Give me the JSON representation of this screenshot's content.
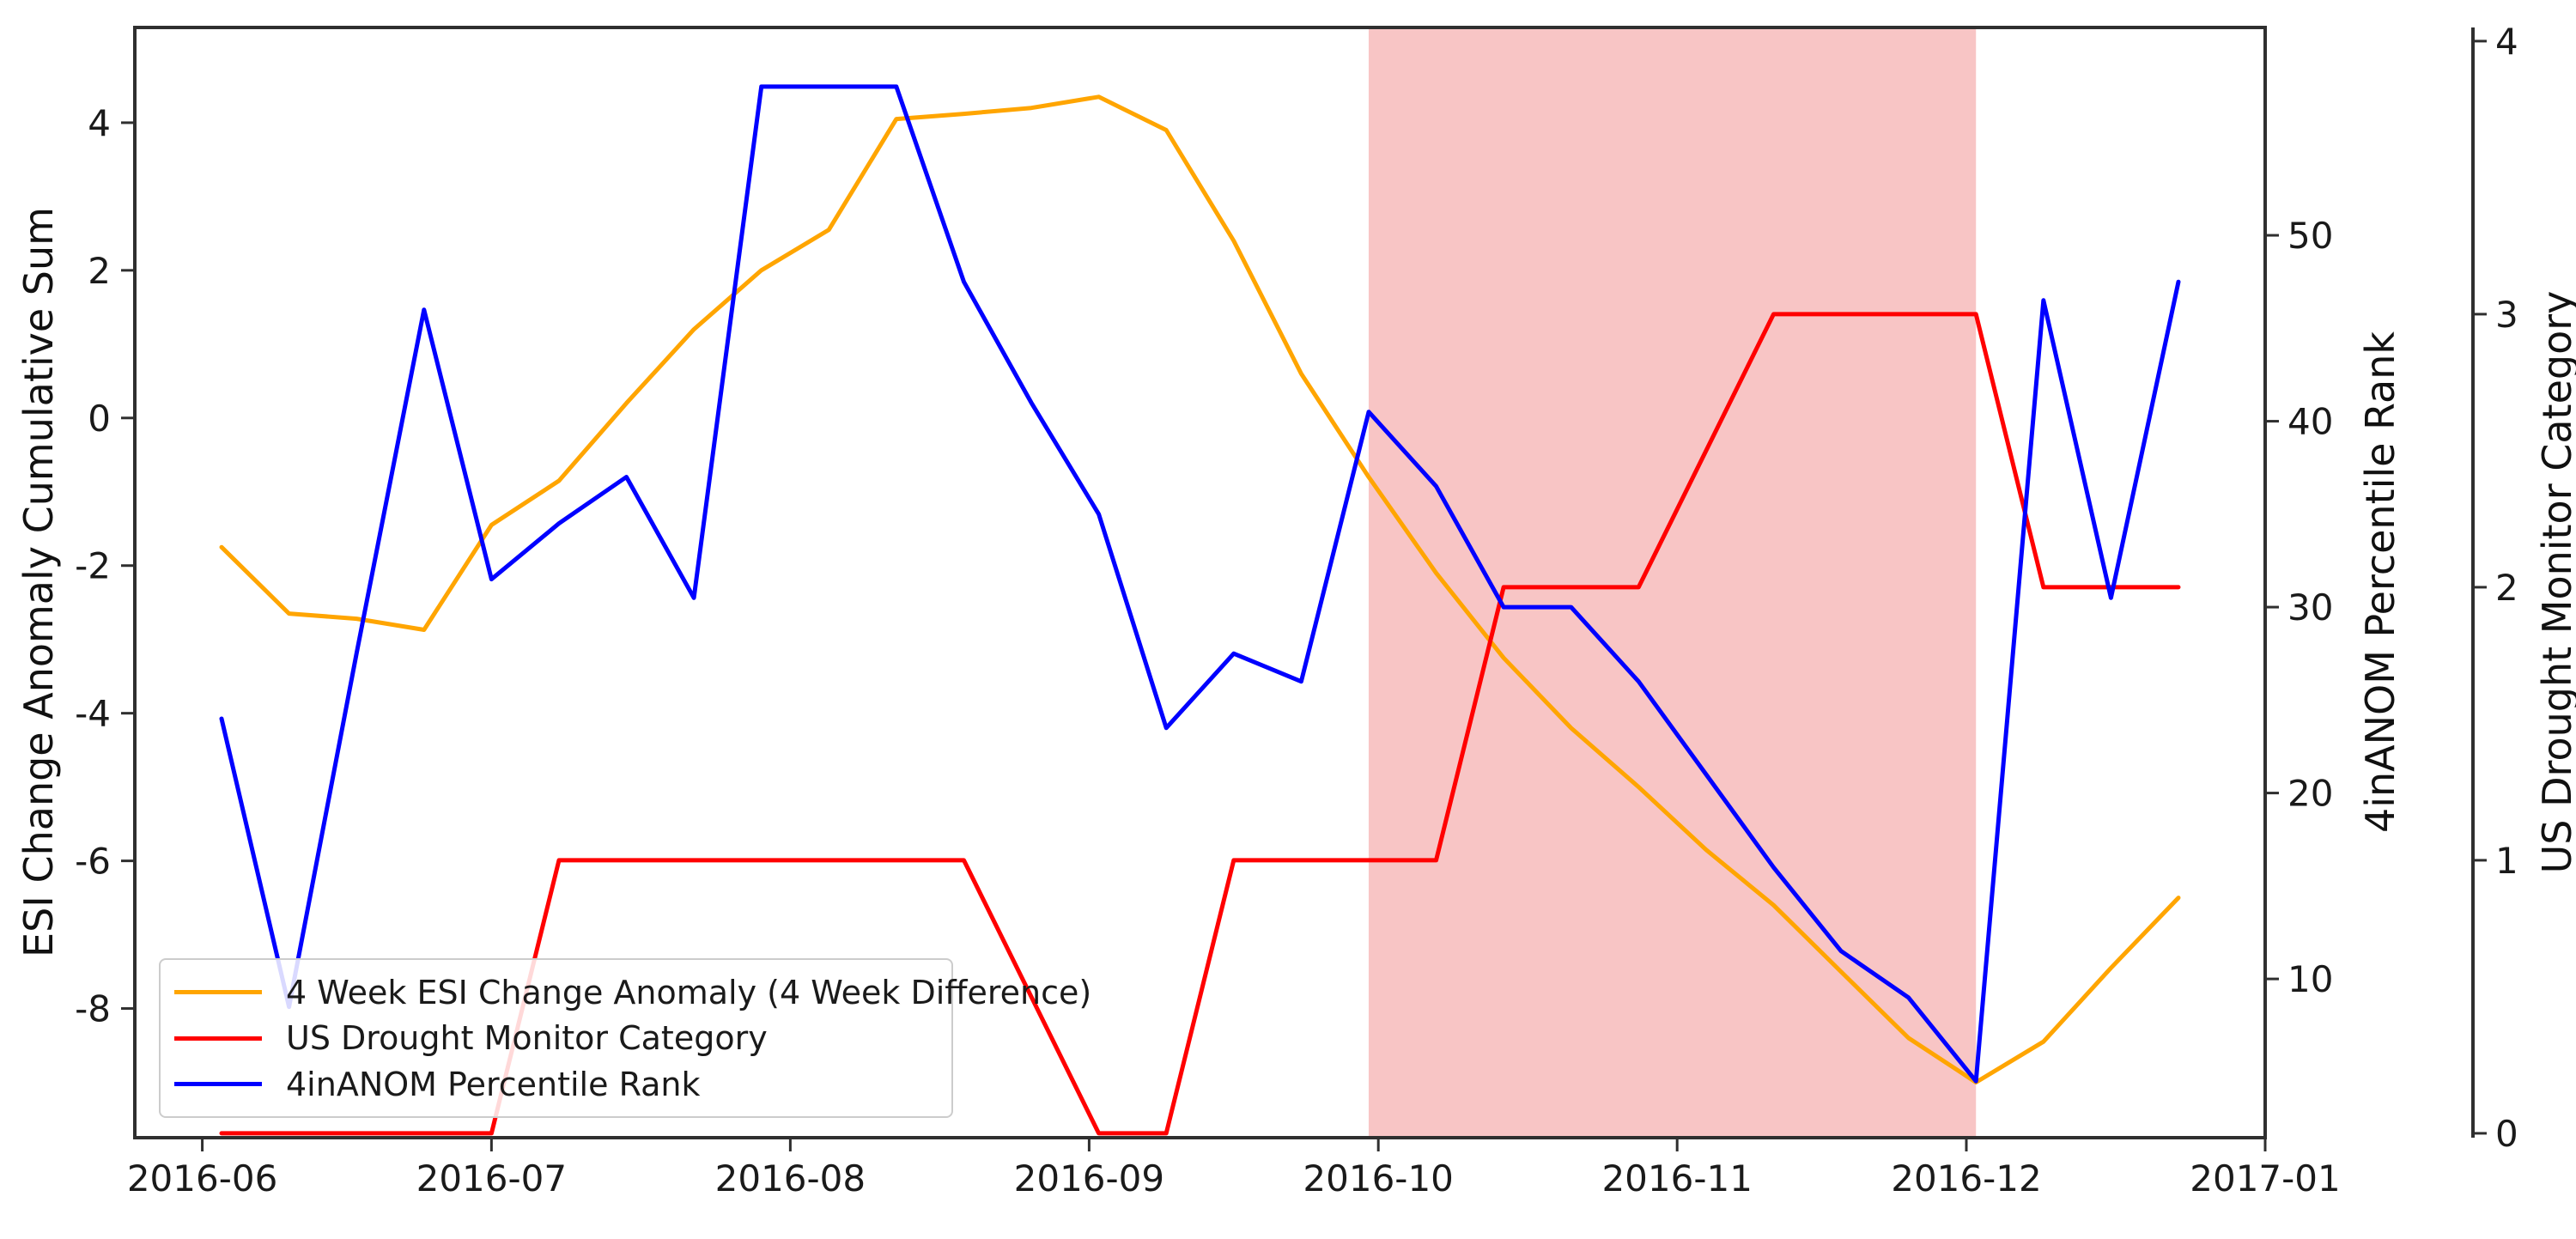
{
  "chart_data": {
    "type": "line",
    "title": "",
    "grid": false,
    "figure_bg": "#ffffff",
    "x_range": {
      "start": "2016-05-25",
      "end": "2017-01-01"
    },
    "x_ticks": [
      {
        "label": "2016-06",
        "date": "2016-06-01"
      },
      {
        "label": "2016-07",
        "date": "2016-07-01"
      },
      {
        "label": "2016-08",
        "date": "2016-08-01"
      },
      {
        "label": "2016-09",
        "date": "2016-09-01"
      },
      {
        "label": "2016-10",
        "date": "2016-10-01"
      },
      {
        "label": "2016-11",
        "date": "2016-11-01"
      },
      {
        "label": "2016-12",
        "date": "2016-12-01"
      },
      {
        "label": "2017-01",
        "date": "2017-01-01"
      }
    ],
    "left_axis": {
      "label": "ESI Change Anomaly Cumulative Sum",
      "ticks": [
        4,
        2,
        0,
        -2,
        -4,
        -6,
        -8
      ],
      "min": -9.75,
      "max": 5.29
    },
    "right_axis_percentile": {
      "label": "4inANOM Percentile Rank",
      "ticks": [
        50,
        40,
        30,
        20,
        10
      ],
      "min": 1.46,
      "max": 61.18
    },
    "right_axis_category": {
      "label": "US Drought Monitor Category",
      "ticks": [
        4,
        3,
        2,
        1,
        0
      ],
      "min": -0.016,
      "max": 4.05
    },
    "shaded_region": {
      "start": "2016-09-30",
      "end": "2016-12-02",
      "color": "#f8c5c5"
    },
    "legend": {
      "position": "lower left",
      "entries": [
        "4 Week ESI Change Anomaly (4 Week Difference)",
        "US Drought Monitor Category",
        "4inANOM Percentile Rank"
      ]
    },
    "series": [
      {
        "name": "4 Week ESI Change Anomaly (4 Week Difference)",
        "color": "#FFA500",
        "axis": "left",
        "points": [
          [
            "2016-06-03",
            -1.75
          ],
          [
            "2016-06-10",
            -2.65
          ],
          [
            "2016-06-17",
            -2.72
          ],
          [
            "2016-06-24",
            -2.87
          ],
          [
            "2016-07-01",
            -1.45
          ],
          [
            "2016-07-08",
            -0.85
          ],
          [
            "2016-07-15",
            0.2
          ],
          [
            "2016-07-22",
            1.2
          ],
          [
            "2016-07-29",
            2.0
          ],
          [
            "2016-08-05",
            2.55
          ],
          [
            "2016-08-12",
            4.05
          ],
          [
            "2016-08-19",
            4.12
          ],
          [
            "2016-08-26",
            4.2
          ],
          [
            "2016-09-02",
            4.35
          ],
          [
            "2016-09-09",
            3.9
          ],
          [
            "2016-09-16",
            2.4
          ],
          [
            "2016-09-23",
            0.6
          ],
          [
            "2016-09-30",
            -0.8
          ],
          [
            "2016-10-07",
            -2.1
          ],
          [
            "2016-10-14",
            -3.25
          ],
          [
            "2016-10-21",
            -4.2
          ],
          [
            "2016-10-28",
            -5.0
          ],
          [
            "2016-11-04",
            -5.85
          ],
          [
            "2016-11-11",
            -6.6
          ],
          [
            "2016-11-18",
            -7.5
          ],
          [
            "2016-11-25",
            -8.4
          ],
          [
            "2016-12-02",
            -9.0
          ],
          [
            "2016-12-09",
            -8.45
          ],
          [
            "2016-12-16",
            -7.45
          ],
          [
            "2016-12-23",
            -6.5
          ]
        ]
      },
      {
        "name": "US Drought Monitor Category",
        "color": "#FF0000",
        "axis": "category",
        "points": [
          [
            "2016-06-03",
            0
          ],
          [
            "2016-07-01",
            0
          ],
          [
            "2016-07-08",
            1
          ],
          [
            "2016-08-19",
            1
          ],
          [
            "2016-09-02",
            0
          ],
          [
            "2016-09-09",
            0
          ],
          [
            "2016-09-16",
            1
          ],
          [
            "2016-10-07",
            1
          ],
          [
            "2016-10-14",
            2
          ],
          [
            "2016-10-28",
            2
          ],
          [
            "2016-11-11",
            3
          ],
          [
            "2016-12-02",
            3
          ],
          [
            "2016-12-09",
            2
          ],
          [
            "2016-12-23",
            2
          ]
        ]
      },
      {
        "name": "4inANOM Percentile Rank",
        "color": "#0000FF",
        "axis": "percentile",
        "points": [
          [
            "2016-06-03",
            24
          ],
          [
            "2016-06-10",
            8.5
          ],
          [
            "2016-06-17",
            27.5
          ],
          [
            "2016-06-24",
            46
          ],
          [
            "2016-07-01",
            31.5
          ],
          [
            "2016-07-08",
            34.5
          ],
          [
            "2016-07-15",
            37
          ],
          [
            "2016-07-22",
            30.5
          ],
          [
            "2016-07-29",
            58
          ],
          [
            "2016-08-05",
            58
          ],
          [
            "2016-08-12",
            58
          ],
          [
            "2016-08-19",
            47.5
          ],
          [
            "2016-08-26",
            41
          ],
          [
            "2016-09-02",
            35
          ],
          [
            "2016-09-09",
            23.5
          ],
          [
            "2016-09-16",
            27.5
          ],
          [
            "2016-09-23",
            26
          ],
          [
            "2016-09-30",
            40.5
          ],
          [
            "2016-10-07",
            36.5
          ],
          [
            "2016-10-14",
            30
          ],
          [
            "2016-10-21",
            30
          ],
          [
            "2016-10-28",
            26
          ],
          [
            "2016-11-04",
            21
          ],
          [
            "2016-11-11",
            16
          ],
          [
            "2016-11-18",
            11.5
          ],
          [
            "2016-11-25",
            9
          ],
          [
            "2016-12-02",
            4.5
          ],
          [
            "2016-12-09",
            46.5
          ],
          [
            "2016-12-16",
            30.5
          ],
          [
            "2016-12-23",
            47.5
          ]
        ]
      }
    ]
  }
}
